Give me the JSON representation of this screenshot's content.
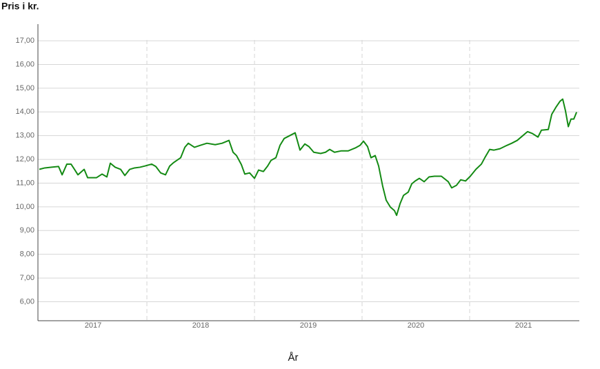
{
  "chart_data": {
    "type": "line",
    "ylabel": "Pris i kr.",
    "xlabel": "År",
    "categories": [
      "2017",
      "2018",
      "2019",
      "2020",
      "2021"
    ],
    "xlim": [
      2017,
      2022
    ],
    "ylim": [
      5.2,
      17.7
    ],
    "yticks": [
      {
        "value": 6,
        "label": "6,00"
      },
      {
        "value": 7,
        "label": "7,00"
      },
      {
        "value": 8,
        "label": "8,00"
      },
      {
        "value": 9,
        "label": "9,00"
      },
      {
        "value": 10,
        "label": "10,00"
      },
      {
        "value": 11,
        "label": "11,00"
      },
      {
        "value": 12,
        "label": "12,00"
      },
      {
        "value": 13,
        "label": "13,00"
      },
      {
        "value": 14,
        "label": "14,00"
      },
      {
        "value": 15,
        "label": "15,00"
      },
      {
        "value": 16,
        "label": "16,00"
      },
      {
        "value": 17,
        "label": "17,00"
      }
    ],
    "grid": true,
    "x": [
      2017.0,
      2017.051,
      2017.115,
      2017.179,
      2017.212,
      2017.256,
      2017.295,
      2017.327,
      2017.359,
      2017.417,
      2017.449,
      2017.532,
      2017.583,
      2017.628,
      2017.66,
      2017.705,
      2017.756,
      2017.795,
      2017.84,
      2017.885,
      2017.936,
      2017.981,
      2018.045,
      2018.083,
      2018.128,
      2018.173,
      2018.212,
      2018.25,
      2018.314,
      2018.353,
      2018.385,
      2018.442,
      2018.494,
      2018.558,
      2018.635,
      2018.699,
      2018.763,
      2018.801,
      2018.833,
      2018.878,
      2018.91,
      2018.955,
      2019.0,
      2019.038,
      2019.083,
      2019.122,
      2019.154,
      2019.199,
      2019.237,
      2019.276,
      2019.327,
      2019.378,
      2019.423,
      2019.468,
      2019.506,
      2019.551,
      2019.615,
      2019.66,
      2019.699,
      2019.744,
      2019.808,
      2019.872,
      2019.936,
      2019.981,
      2020.013,
      2020.051,
      2020.083,
      2020.122,
      2020.154,
      2020.192,
      2020.224,
      2020.263,
      2020.301,
      2020.321,
      2020.353,
      2020.385,
      2020.429,
      2020.462,
      2020.494,
      2020.532,
      2020.577,
      2020.622,
      2020.673,
      2020.737,
      2020.801,
      2020.833,
      2020.878,
      2020.917,
      2020.962,
      2021.006,
      2021.058,
      2021.109,
      2021.141,
      2021.186,
      2021.224,
      2021.282,
      2021.346,
      2021.391,
      2021.442,
      2021.494,
      2021.538,
      2021.583,
      2021.635,
      2021.667,
      2021.731,
      2021.763,
      2021.801,
      2021.84,
      2021.865,
      2021.891,
      2021.917,
      2021.942,
      2021.968,
      2021.994
    ],
    "series": [
      {
        "color": "#138a13",
        "values": [
          11.58,
          11.64,
          11.67,
          11.7,
          11.35,
          11.8,
          11.8,
          11.58,
          11.35,
          11.58,
          11.23,
          11.23,
          11.38,
          11.26,
          11.84,
          11.67,
          11.58,
          11.32,
          11.58,
          11.64,
          11.67,
          11.72,
          11.8,
          11.7,
          11.43,
          11.35,
          11.72,
          11.87,
          12.07,
          12.51,
          12.68,
          12.51,
          12.59,
          12.68,
          12.62,
          12.68,
          12.8,
          12.3,
          12.16,
          11.78,
          11.38,
          11.43,
          11.2,
          11.55,
          11.49,
          11.72,
          11.96,
          12.07,
          12.59,
          12.88,
          13.0,
          13.12,
          12.39,
          12.65,
          12.54,
          12.3,
          12.25,
          12.3,
          12.42,
          12.3,
          12.36,
          12.36,
          12.48,
          12.59,
          12.77,
          12.54,
          12.07,
          12.16,
          11.72,
          10.86,
          10.28,
          9.99,
          9.84,
          9.64,
          10.13,
          10.48,
          10.62,
          10.97,
          11.09,
          11.2,
          11.06,
          11.26,
          11.29,
          11.29,
          11.06,
          10.8,
          10.91,
          11.14,
          11.09,
          11.29,
          11.58,
          11.8,
          12.07,
          12.42,
          12.39,
          12.45,
          12.59,
          12.68,
          12.8,
          13.0,
          13.17,
          13.09,
          12.94,
          13.23,
          13.26,
          13.9,
          14.19,
          14.45,
          14.54,
          14.04,
          13.38,
          13.7,
          13.7,
          13.99
        ]
      }
    ]
  }
}
